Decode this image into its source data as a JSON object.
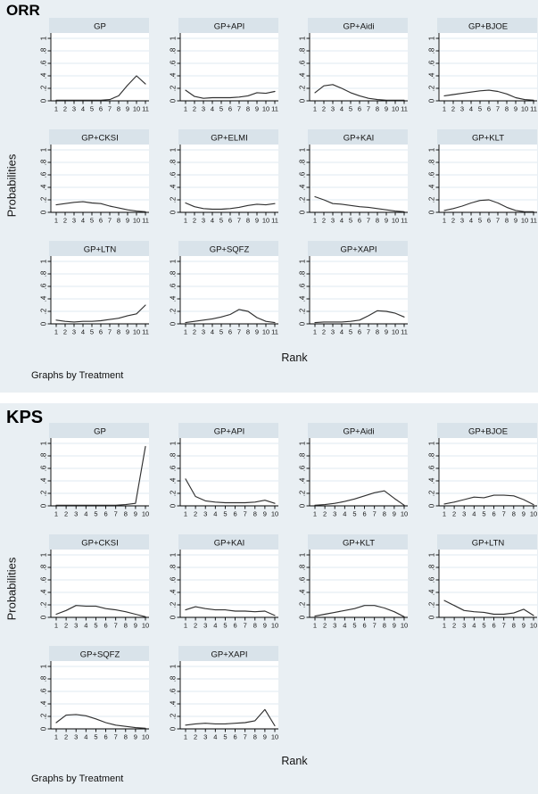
{
  "colors": {
    "figure_bg": "#e9eff3",
    "header_band": "#d9e3ea",
    "plot_bg": "#ffffff",
    "gridline": "#dfe9f0",
    "axis": "#000000",
    "line": "#303030"
  },
  "chart_data": [
    {
      "type": "line",
      "label": "ORR",
      "ylabel": "Probabilities",
      "xlabel": "Rank",
      "note": "Graphs by Treatment",
      "x": [
        1,
        2,
        3,
        4,
        5,
        6,
        7,
        8,
        9,
        10,
        11
      ],
      "ylim": [
        0,
        1
      ],
      "yticks": [
        "0",
        ".2",
        ".4",
        ".6",
        ".8",
        "1"
      ],
      "ytick_values": [
        0,
        0.2,
        0.4,
        0.6,
        0.8,
        1
      ],
      "grid": true,
      "legend": "none",
      "series": [
        {
          "name": "GP",
          "values": [
            0.01,
            0.01,
            0.01,
            0.01,
            0.01,
            0.01,
            0.02,
            0.08,
            0.25,
            0.4,
            0.27
          ]
        },
        {
          "name": "GP+API",
          "values": [
            0.17,
            0.07,
            0.04,
            0.05,
            0.05,
            0.05,
            0.06,
            0.08,
            0.13,
            0.12,
            0.15
          ]
        },
        {
          "name": "GP+Aidi",
          "values": [
            0.13,
            0.24,
            0.26,
            0.2,
            0.13,
            0.08,
            0.04,
            0.02,
            0.01,
            0.01,
            0.01
          ]
        },
        {
          "name": "GP+BJOE",
          "values": [
            0.08,
            0.1,
            0.12,
            0.14,
            0.16,
            0.17,
            0.15,
            0.11,
            0.05,
            0.02,
            0.01
          ]
        },
        {
          "name": "GP+CKSI",
          "values": [
            0.12,
            0.14,
            0.16,
            0.17,
            0.15,
            0.14,
            0.1,
            0.07,
            0.04,
            0.02,
            0.01
          ]
        },
        {
          "name": "GP+ELMI",
          "values": [
            0.15,
            0.09,
            0.06,
            0.05,
            0.05,
            0.06,
            0.08,
            0.11,
            0.13,
            0.12,
            0.14
          ]
        },
        {
          "name": "GP+KAI",
          "values": [
            0.25,
            0.2,
            0.14,
            0.13,
            0.11,
            0.09,
            0.08,
            0.06,
            0.04,
            0.02,
            0.01
          ]
        },
        {
          "name": "GP+KLT",
          "values": [
            0.03,
            0.06,
            0.1,
            0.15,
            0.19,
            0.2,
            0.15,
            0.08,
            0.03,
            0.01,
            0.01
          ]
        },
        {
          "name": "GP+LTN",
          "values": [
            0.06,
            0.04,
            0.03,
            0.04,
            0.04,
            0.05,
            0.07,
            0.09,
            0.13,
            0.16,
            0.3
          ]
        },
        {
          "name": "GP+SQFZ",
          "values": [
            0.02,
            0.04,
            0.06,
            0.08,
            0.11,
            0.15,
            0.23,
            0.2,
            0.1,
            0.04,
            0.02
          ]
        },
        {
          "name": "GP+XAPI",
          "values": [
            0.02,
            0.03,
            0.03,
            0.03,
            0.04,
            0.06,
            0.13,
            0.21,
            0.2,
            0.17,
            0.11
          ]
        }
      ]
    },
    {
      "type": "line",
      "label": "KPS",
      "ylabel": "Probabilities",
      "xlabel": "Rank",
      "note": "Graphs by Treatment",
      "x": [
        1,
        2,
        3,
        4,
        5,
        6,
        7,
        8,
        9,
        10
      ],
      "ylim": [
        0,
        1
      ],
      "yticks": [
        "0",
        ".2",
        ".4",
        ".6",
        ".8",
        "1"
      ],
      "ytick_values": [
        0,
        0.2,
        0.4,
        0.6,
        0.8,
        1
      ],
      "grid": true,
      "legend": "none",
      "series": [
        {
          "name": "GP",
          "values": [
            0.01,
            0.01,
            0.01,
            0.01,
            0.01,
            0.01,
            0.01,
            0.02,
            0.04,
            0.95
          ]
        },
        {
          "name": "GP+API",
          "values": [
            0.43,
            0.15,
            0.08,
            0.06,
            0.05,
            0.05,
            0.05,
            0.06,
            0.09,
            0.04
          ]
        },
        {
          "name": "GP+Aidi",
          "values": [
            0.01,
            0.02,
            0.04,
            0.07,
            0.11,
            0.16,
            0.21,
            0.24,
            0.12,
            0.01
          ]
        },
        {
          "name": "GP+BJOE",
          "values": [
            0.03,
            0.06,
            0.1,
            0.14,
            0.13,
            0.17,
            0.17,
            0.16,
            0.1,
            0.02
          ]
        },
        {
          "name": "GP+CKSI",
          "values": [
            0.05,
            0.11,
            0.19,
            0.18,
            0.18,
            0.14,
            0.12,
            0.09,
            0.05,
            0.01
          ]
        },
        {
          "name": "GP+KAI",
          "values": [
            0.12,
            0.17,
            0.14,
            0.12,
            0.12,
            0.1,
            0.1,
            0.09,
            0.1,
            0.03
          ]
        },
        {
          "name": "GP+KLT",
          "values": [
            0.02,
            0.05,
            0.08,
            0.11,
            0.14,
            0.19,
            0.19,
            0.15,
            0.09,
            0.01
          ]
        },
        {
          "name": "GP+LTN",
          "values": [
            0.27,
            0.19,
            0.11,
            0.09,
            0.08,
            0.05,
            0.05,
            0.07,
            0.13,
            0.03
          ]
        },
        {
          "name": "GP+SQFZ",
          "values": [
            0.1,
            0.22,
            0.23,
            0.21,
            0.16,
            0.1,
            0.06,
            0.04,
            0.02,
            0.01
          ]
        },
        {
          "name": "GP+XAPI",
          "values": [
            0.06,
            0.08,
            0.09,
            0.08,
            0.08,
            0.09,
            0.1,
            0.13,
            0.31,
            0.05
          ]
        }
      ]
    }
  ]
}
